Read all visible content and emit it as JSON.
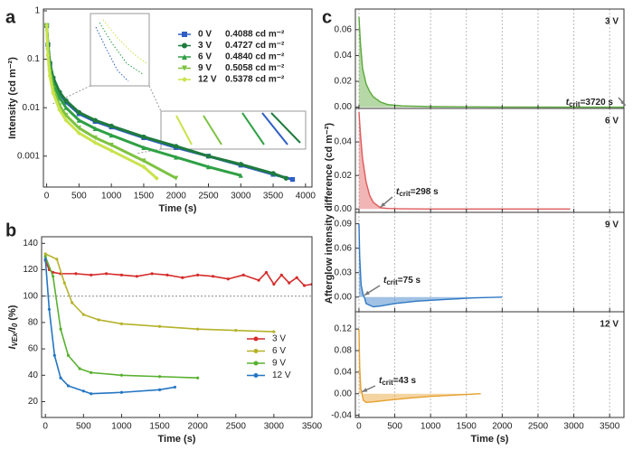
{
  "chart_data": [
    {
      "panel": "a",
      "type": "line",
      "x_label": "Time (s)",
      "y_label": "Intensity (cd m⁻²)",
      "xlim": [
        -50,
        4100
      ],
      "xticks": [
        0,
        500,
        1000,
        1500,
        2000,
        2500,
        3000,
        3500,
        4000
      ],
      "ylim": [
        0.00023,
        1.09
      ],
      "yticks": [
        0.001,
        0.01,
        0.1,
        1
      ],
      "y_log": true,
      "legend": "upper right",
      "series": [
        {
          "name": "0 V",
          "intensity": "0.4088 cd m⁻²",
          "color": "#2f5fc4",
          "marker": "square",
          "x": [
            0,
            20,
            50,
            100,
            200,
            300,
            500,
            750,
            1000,
            1500,
            2000,
            2500,
            3000,
            3500,
            3800
          ],
          "values": [
            0.5,
            0.2,
            0.08,
            0.04,
            0.02,
            0.013,
            0.0075,
            0.0052,
            0.004,
            0.0024,
            0.0015,
            0.001,
            0.00065,
            0.00042,
            0.00033
          ]
        },
        {
          "name": "3 V",
          "intensity": "0.4727 cd m⁻²",
          "color": "#1e7b3c",
          "marker": "circle",
          "x": [
            0,
            20,
            50,
            100,
            200,
            300,
            500,
            750,
            1000,
            1500,
            2000,
            2500,
            3000,
            3500,
            3700
          ],
          "values": [
            0.5,
            0.2,
            0.085,
            0.042,
            0.021,
            0.014,
            0.008,
            0.0055,
            0.0042,
            0.0025,
            0.0016,
            0.001,
            0.00068,
            0.00044,
            0.00035
          ]
        },
        {
          "name": "6 V",
          "intensity": "0.4840 cd m⁻²",
          "color": "#2fa044",
          "marker": "triangle",
          "x": [
            0,
            20,
            50,
            100,
            200,
            300,
            500,
            750,
            1000,
            1500,
            2000,
            2500,
            3000
          ],
          "values": [
            0.5,
            0.18,
            0.07,
            0.033,
            0.016,
            0.01,
            0.0055,
            0.0037,
            0.0027,
            0.0015,
            0.00095,
            0.0006,
            0.0004
          ]
        },
        {
          "name": "9 V",
          "intensity": "0.5058 cd m⁻²",
          "color": "#7cc242",
          "marker": "triangle-down",
          "x": [
            0,
            20,
            50,
            100,
            200,
            300,
            500,
            750,
            1000,
            1500,
            2000
          ],
          "values": [
            0.5,
            0.15,
            0.055,
            0.025,
            0.011,
            0.007,
            0.0038,
            0.0024,
            0.0017,
            0.0008,
            0.00035
          ]
        },
        {
          "name": "12 V",
          "intensity": "0.5378 cd m⁻²",
          "color": "#c9e34c",
          "marker": "diamond",
          "x": [
            0,
            20,
            50,
            100,
            200,
            300,
            500,
            750,
            1000,
            1500,
            1700
          ],
          "values": [
            0.5,
            0.12,
            0.045,
            0.02,
            0.009,
            0.0055,
            0.003,
            0.0019,
            0.0013,
            0.0006,
            0.00035
          ]
        }
      ]
    },
    {
      "panel": "b",
      "type": "line",
      "x_label": "Time (s)",
      "y_label": [
        {
          "text": "I",
          "italic": true
        },
        {
          "text": "VEx",
          "italic": true,
          "sub": true
        },
        {
          "text": "/I",
          "italic": true
        },
        {
          "text": "0",
          "italic": true,
          "sub": true
        },
        {
          "text": " (%)"
        }
      ],
      "xlim": [
        -50,
        3500
      ],
      "xticks": [
        0,
        500,
        1000,
        1500,
        2000,
        2500,
        3000,
        3500
      ],
      "ylim": [
        8,
        145
      ],
      "yticks": [
        20,
        40,
        60,
        80,
        100,
        120,
        140
      ],
      "reference_line": 100,
      "legend": "lower right",
      "series": [
        {
          "name": "3 V",
          "color": "#d62b2b",
          "marker": "circle",
          "x": [
            0,
            50,
            100,
            200,
            400,
            600,
            800,
            1000,
            1200,
            1400,
            1600,
            1800,
            2000,
            2200,
            2400,
            2600,
            2800,
            2900,
            3000,
            3100,
            3200,
            3300,
            3400,
            3500
          ],
          "values": [
            127,
            120,
            118,
            117,
            117,
            116,
            117,
            116,
            115,
            117,
            116,
            114,
            116,
            115,
            113,
            116,
            112,
            118,
            109,
            116,
            110,
            114,
            108,
            109
          ]
        },
        {
          "name": "6 V",
          "color": "#b5b22a",
          "marker": "circle",
          "x": [
            0,
            150,
            250,
            350,
            500,
            700,
            1000,
            1500,
            2000,
            2500,
            3000
          ],
          "values": [
            132,
            128,
            110,
            95,
            86,
            82,
            79,
            77,
            75,
            74,
            73
          ]
        },
        {
          "name": "9 V",
          "color": "#58b030",
          "marker": "circle",
          "x": [
            0,
            100,
            200,
            300,
            450,
            600,
            1000,
            1500,
            2000
          ],
          "values": [
            130,
            115,
            75,
            55,
            45,
            42,
            40,
            39,
            38
          ]
        },
        {
          "name": "12 V",
          "color": "#2476c2",
          "marker": "circle",
          "x": [
            0,
            50,
            120,
            200,
            300,
            500,
            600,
            1000,
            1500,
            1700
          ],
          "values": [
            128,
            90,
            55,
            38,
            32,
            28,
            26,
            27,
            29,
            31
          ]
        }
      ]
    },
    {
      "panel": "c",
      "type": "area",
      "title": "3 V",
      "title_color": "#5d8f2c",
      "color": "#5aa83a",
      "y_label": "Afterglow intensity difference (cd m⁻²)",
      "xlim": [
        -50,
        3700
      ],
      "xticks": [
        0,
        500,
        1000,
        1500,
        2000,
        2500,
        3000,
        3500
      ],
      "x_tick_labels": false,
      "grid": true,
      "ylim": [
        -0.001,
        0.076
      ],
      "yticks": [
        {
          "value": 0,
          "label": "0.00"
        },
        0.02,
        0.04,
        0.06
      ],
      "x": [
        0,
        20,
        50,
        100,
        150,
        200,
        300,
        400,
        600,
        1000,
        2000,
        3000,
        3720
      ],
      "values": [
        0.07,
        0.05,
        0.03,
        0.018,
        0.012,
        0.008,
        0.004,
        0.002,
        0.001,
        0.0004,
        0.0001,
        0,
        0
      ],
      "t_crit": 3720,
      "annotation": [
        {
          "text": "t",
          "italic": true
        },
        {
          "text": "crit",
          "sub": true
        },
        {
          "text": "=3720 s"
        }
      ]
    },
    {
      "type": "area",
      "title": "6 V",
      "title_color": "#c0392b",
      "color": "#e05a5a",
      "xlim": [
        -50,
        3700
      ],
      "xticks": [
        0,
        500,
        1000,
        1500,
        2000,
        2500,
        3000,
        3500
      ],
      "x_tick_labels": false,
      "grid": true,
      "ylim": [
        -0.002,
        0.06
      ],
      "yticks": [
        {
          "value": 0,
          "label": "0.00"
        },
        0.02,
        0.04
      ],
      "x": [
        0,
        20,
        50,
        100,
        150,
        200,
        298,
        400,
        600,
        1000,
        2000,
        2950
      ],
      "values": [
        0.058,
        0.045,
        0.03,
        0.016,
        0.008,
        0.004,
        0.0008,
        0.0003,
        0.0001,
        0,
        0,
        0
      ],
      "t_crit": 298,
      "annotation": [
        {
          "text": "t",
          "italic": true
        },
        {
          "text": "crit",
          "sub": true
        },
        {
          "text": "=298 s"
        }
      ]
    },
    {
      "type": "area",
      "title": "9 V",
      "title_color": "#3d7fc0",
      "color": "#2f78c4",
      "xlim": [
        -50,
        3700
      ],
      "xticks": [
        0,
        500,
        1000,
        1500,
        2000,
        2500,
        3000,
        3500
      ],
      "x_tick_labels": false,
      "grid": true,
      "ylim": [
        -0.018,
        0.104
      ],
      "yticks": [
        {
          "value": 0,
          "label": "0.00"
        },
        0.03,
        0.06,
        0.09
      ],
      "x": [
        0,
        10,
        30,
        60,
        75,
        100,
        200,
        300,
        500,
        800,
        1200,
        1600,
        2000
      ],
      "values": [
        0.09,
        0.05,
        0.015,
        0.002,
        0,
        -0.008,
        -0.012,
        -0.011,
        -0.008,
        -0.005,
        -0.003,
        -0.001,
        0
      ],
      "t_crit": 75,
      "annotation": [
        {
          "text": "t",
          "italic": true
        },
        {
          "text": "crit",
          "sub": true
        },
        {
          "text": "=75 s"
        }
      ]
    },
    {
      "type": "area",
      "title": "12 V",
      "title_color": "#e69a28",
      "color": "#e6a02e",
      "x_label": "Time (s)",
      "xlim": [
        -50,
        3700
      ],
      "xticks": [
        0,
        500,
        1000,
        1500,
        2000,
        2500,
        3000,
        3500
      ],
      "x_tick_labels": true,
      "grid": true,
      "ylim": [
        -0.044,
        0.152
      ],
      "yticks": [
        -0.04,
        {
          "value": 0,
          "label": "0.00"
        },
        0.04,
        0.08,
        0.12
      ],
      "x": [
        0,
        10,
        25,
        43,
        60,
        100,
        200,
        400,
        700,
        1000,
        1400,
        1700
      ],
      "values": [
        0.12,
        0.05,
        0.01,
        0,
        -0.012,
        -0.016,
        -0.015,
        -0.012,
        -0.008,
        -0.005,
        -0.002,
        0
      ],
      "t_crit": 43,
      "annotation": [
        {
          "text": "t",
          "italic": true
        },
        {
          "text": "crit",
          "sub": true
        },
        {
          "text": "=43 s"
        }
      ]
    }
  ]
}
